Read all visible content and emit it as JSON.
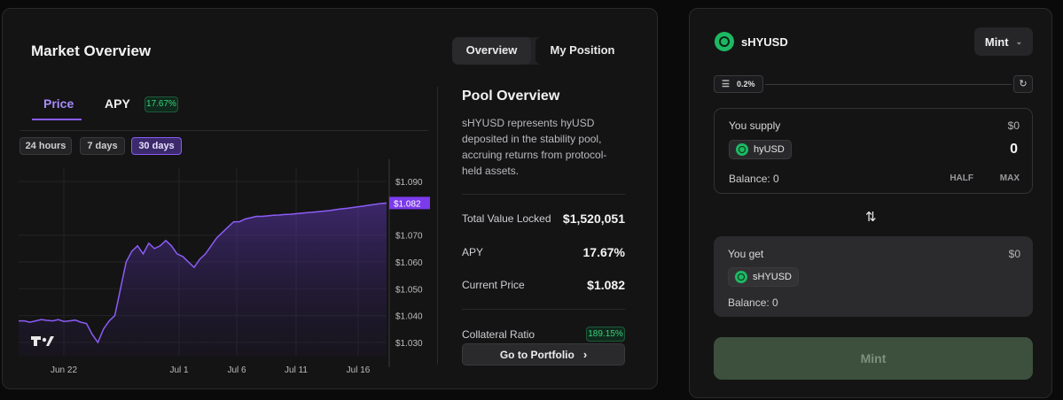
{
  "market": {
    "title": "Market Overview",
    "tabs": [
      {
        "label": "Overview",
        "active": true
      },
      {
        "label": "My Position",
        "active": false
      }
    ],
    "subtabs": [
      {
        "label": "Price",
        "active": true
      },
      {
        "label": "APY",
        "active": false
      }
    ],
    "apy_badge": "17.67%",
    "ranges": [
      {
        "label": "24 hours",
        "active": false
      },
      {
        "label": "7 days",
        "active": false
      },
      {
        "label": "30 days",
        "active": true
      }
    ],
    "chart_logo": "TV"
  },
  "chart_data": {
    "type": "area",
    "series": [
      {
        "values": [
          1.038,
          1.038,
          1.0375,
          1.038,
          1.0385,
          1.0382,
          1.038,
          1.0385,
          1.0378,
          1.038,
          1.0383,
          1.0375,
          1.037,
          1.033,
          1.03,
          1.035,
          1.038,
          1.04,
          1.05,
          1.06,
          1.064,
          1.066,
          1.063,
          1.067,
          1.065,
          1.066,
          1.068,
          1.066,
          1.063,
          1.062,
          1.06,
          1.058,
          1.061,
          1.063,
          1.066,
          1.069,
          1.071,
          1.073,
          1.075,
          1.075,
          1.076,
          1.0765,
          1.077,
          1.077,
          1.0772,
          1.0774,
          1.0775,
          1.0777,
          1.0778,
          1.078,
          1.0782,
          1.0784,
          1.0786,
          1.0788,
          1.079,
          1.0792,
          1.0795,
          1.0798,
          1.08,
          1.0803,
          1.0806,
          1.0809,
          1.0812,
          1.0815,
          1.0818,
          1.082
        ]
      }
    ],
    "x_ticks": [
      "Jun 22",
      "Jul 1",
      "Jul 6",
      "Jul 11",
      "Jul 16"
    ],
    "y_ticks": [
      "$1.090",
      "$1.070",
      "$1.060",
      "$1.050",
      "$1.040",
      "$1.030"
    ],
    "ylim": [
      1.025,
      1.095
    ],
    "current_label": "$1.082",
    "current_value": 1.082,
    "grid": true
  },
  "pool": {
    "title": "Pool Overview",
    "description": "sHYUSD represents hyUSD deposited in the stability pool, accruing returns from protocol-held assets.",
    "rows": [
      {
        "label": "Total Value Locked",
        "value": "$1,520,051"
      },
      {
        "label": "APY",
        "value": "17.67%"
      },
      {
        "label": "Current Price",
        "value": "$1.082"
      }
    ],
    "collateral_label": "Collateral Ratio",
    "collateral_value": "189.15%",
    "portfolio_button": "Go to Portfolio"
  },
  "swap": {
    "token": "sHYUSD",
    "mode": "Mint",
    "slippage": "0.2%",
    "supply": {
      "label": "You supply",
      "usd": "$0",
      "token": "hyUSD",
      "amount": "0",
      "balance": "Balance: 0",
      "half": "HALF",
      "max": "MAX"
    },
    "get": {
      "label": "You get",
      "usd": "$0",
      "token": "sHYUSD",
      "balance": "Balance: 0"
    },
    "submit": "Mint"
  }
}
